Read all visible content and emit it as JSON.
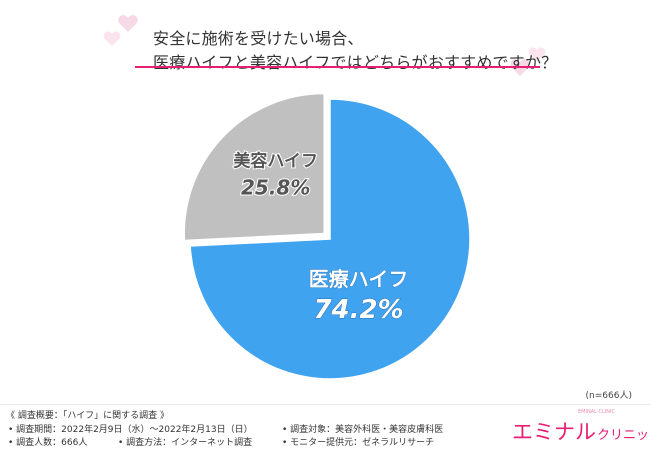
{
  "header": {
    "title_line1": "安全に施術を受けたい場合、",
    "title_line2": "医療ハイフと美容ハイフではどちらがおすすめですか？"
  },
  "chart_data": {
    "type": "pie",
    "title": "安全に施術を受けたい場合、医療ハイフと美容ハイフではどちらがおすすめですか？",
    "slices": [
      {
        "label": "医療ハイフ",
        "value": 74.2,
        "value_label": "74.2%",
        "color": "#3fa3ef"
      },
      {
        "label": "美容ハイフ",
        "value": 25.8,
        "value_label": "25.8%",
        "color": "#c0c0c0"
      }
    ],
    "start": "12 o'clock",
    "direction": "clockwise",
    "exploded_slice": "美容ハイフ"
  },
  "sample_note": "(n=666人)",
  "footer": {
    "heading": "《 調査概要：「ハイフ」に関する調査 》",
    "period": "• 調査期間：2022年2月9日（水）～2022年2月13日（日）",
    "count": "• 調査人数：666人",
    "method": "• 調査方法：インターネット調査",
    "target": "• 調査対象：美容外科医・美容皮膚科医",
    "provider": "• モニター提供元：ゼネラルリサーチ"
  },
  "brand": {
    "main": "エミナル",
    "sub": "クリニック",
    "tag": "EMINAL CLINIC"
  },
  "colors": {
    "accent": "#e61f73",
    "heart": "#f5c6da"
  }
}
